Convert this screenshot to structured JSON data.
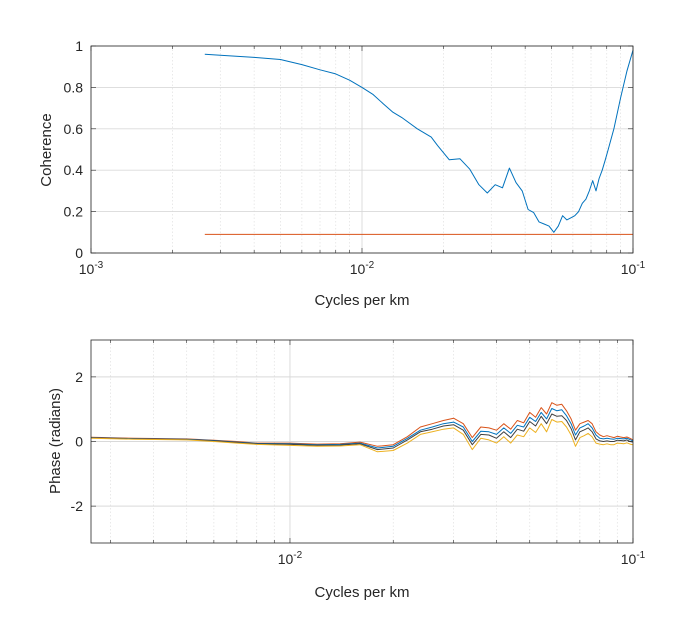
{
  "colors": {
    "background": "#ffffff",
    "axis": "#262626",
    "grid": "#d9d9d9",
    "series_blue": "#0072BD",
    "series_orange": "#D95319",
    "series_yellow": "#EDB120",
    "series_dark": "#404040"
  },
  "chart_data": [
    {
      "type": "line",
      "title": "",
      "xlabel": "Cycles per km",
      "ylabel": "Coherence",
      "xscale": "log",
      "xlim": [
        0.001,
        0.1
      ],
      "ylim": [
        0,
        1
      ],
      "xticks": [
        {
          "value": 0.001,
          "base": "10",
          "exp": "-3"
        },
        {
          "value": 0.01,
          "base": "10",
          "exp": "-2"
        },
        {
          "value": 0.1,
          "base": "10",
          "exp": "-1"
        }
      ],
      "yticks": [
        {
          "value": 0,
          "label": "0"
        },
        {
          "value": 0.2,
          "label": "0.2"
        },
        {
          "value": 0.4,
          "label": "0.4"
        },
        {
          "value": 0.6,
          "label": "0.6"
        },
        {
          "value": 0.8,
          "label": "0.8"
        },
        {
          "value": 1,
          "label": "1"
        }
      ],
      "grid": true,
      "series": [
        {
          "color": "#0072BD",
          "x": [
            0.00263,
            0.003,
            0.004,
            0.005,
            0.006,
            0.007,
            0.008,
            0.009,
            0.01,
            0.011,
            0.012,
            0.013,
            0.014,
            0.016,
            0.018,
            0.019,
            0.021,
            0.023,
            0.025,
            0.027,
            0.029,
            0.031,
            0.033,
            0.035,
            0.037,
            0.039,
            0.041,
            0.043,
            0.045,
            0.047,
            0.049,
            0.051,
            0.053,
            0.055,
            0.057,
            0.059,
            0.061,
            0.063,
            0.065,
            0.067,
            0.069,
            0.071,
            0.073,
            0.075,
            0.077,
            0.079,
            0.081,
            0.085,
            0.09,
            0.095,
            0.1
          ],
          "y": [
            0.96,
            0.955,
            0.945,
            0.935,
            0.91,
            0.885,
            0.865,
            0.835,
            0.8,
            0.765,
            0.72,
            0.68,
            0.655,
            0.6,
            0.56,
            0.52,
            0.45,
            0.455,
            0.405,
            0.33,
            0.29,
            0.33,
            0.315,
            0.41,
            0.34,
            0.3,
            0.21,
            0.195,
            0.15,
            0.14,
            0.13,
            0.1,
            0.13,
            0.18,
            0.16,
            0.17,
            0.18,
            0.2,
            0.24,
            0.26,
            0.3,
            0.35,
            0.3,
            0.36,
            0.4,
            0.45,
            0.5,
            0.6,
            0.75,
            0.88,
            0.98
          ]
        },
        {
          "color": "#D95319",
          "x": [
            0.00263,
            0.1
          ],
          "y": [
            0.09,
            0.09
          ]
        }
      ]
    },
    {
      "type": "line",
      "title": "",
      "xlabel": "Cycles per km",
      "ylabel": "Phase (radians)",
      "xscale": "log",
      "xlim": [
        0.00263,
        0.1
      ],
      "ylim": [
        -3.14159,
        3.14159
      ],
      "xticks": [
        {
          "value": 0.01,
          "base": "10",
          "exp": "-2"
        },
        {
          "value": 0.1,
          "base": "10",
          "exp": "-1"
        }
      ],
      "yticks": [
        {
          "value": -2,
          "label": "-2"
        },
        {
          "value": 0,
          "label": "0"
        },
        {
          "value": 2,
          "label": "2"
        }
      ],
      "grid": true,
      "x": [
        0.00263,
        0.0035,
        0.005,
        0.006,
        0.007,
        0.008,
        0.01,
        0.012,
        0.014,
        0.016,
        0.018,
        0.02,
        0.022,
        0.024,
        0.026,
        0.028,
        0.03,
        0.032,
        0.034,
        0.036,
        0.038,
        0.04,
        0.042,
        0.044,
        0.046,
        0.048,
        0.05,
        0.052,
        0.054,
        0.056,
        0.058,
        0.06,
        0.062,
        0.064,
        0.066,
        0.068,
        0.07,
        0.072,
        0.074,
        0.076,
        0.078,
        0.08,
        0.082,
        0.084,
        0.086,
        0.088,
        0.09,
        0.092,
        0.094,
        0.096,
        0.098,
        0.1
      ],
      "series": [
        {
          "color": "#D95319",
          "y": [
            0.13,
            0.1,
            0.08,
            0.04,
            0.0,
            -0.05,
            -0.05,
            -0.08,
            -0.07,
            -0.02,
            -0.15,
            -0.1,
            0.15,
            0.45,
            0.55,
            0.65,
            0.72,
            0.55,
            0.12,
            0.45,
            0.42,
            0.35,
            0.55,
            0.38,
            0.65,
            0.58,
            0.9,
            0.75,
            1.05,
            0.85,
            1.2,
            1.12,
            1.15,
            0.95,
            0.7,
            0.35,
            0.55,
            0.6,
            0.65,
            0.55,
            0.3,
            0.2,
            0.15,
            0.18,
            0.15,
            0.12,
            0.16,
            0.14,
            0.12,
            0.14,
            0.1,
            0.05
          ]
        },
        {
          "color": "#0072BD",
          "y": [
            0.12,
            0.09,
            0.07,
            0.03,
            -0.02,
            -0.06,
            -0.07,
            -0.1,
            -0.09,
            -0.05,
            -0.2,
            -0.15,
            0.1,
            0.35,
            0.45,
            0.55,
            0.6,
            0.45,
            0.0,
            0.32,
            0.3,
            0.22,
            0.42,
            0.25,
            0.5,
            0.45,
            0.75,
            0.62,
            0.9,
            0.7,
            1.02,
            0.95,
            0.98,
            0.8,
            0.55,
            0.2,
            0.42,
            0.48,
            0.55,
            0.42,
            0.2,
            0.1,
            0.08,
            0.1,
            0.08,
            0.07,
            0.1,
            0.09,
            0.08,
            0.1,
            0.06,
            0.02
          ]
        },
        {
          "color": "#404040",
          "y": [
            0.11,
            0.08,
            0.06,
            0.02,
            -0.03,
            -0.07,
            -0.09,
            -0.12,
            -0.11,
            -0.07,
            -0.25,
            -0.2,
            0.05,
            0.3,
            0.38,
            0.48,
            0.52,
            0.35,
            -0.1,
            0.22,
            0.2,
            0.1,
            0.3,
            0.12,
            0.38,
            0.32,
            0.62,
            0.48,
            0.78,
            0.55,
            0.85,
            0.78,
            0.8,
            0.65,
            0.4,
            0.05,
            0.3,
            0.36,
            0.42,
            0.3,
            0.08,
            0.02,
            0.0,
            0.02,
            0.0,
            0.0,
            0.04,
            0.03,
            0.02,
            0.05,
            0.0,
            -0.02
          ]
        },
        {
          "color": "#EDB120",
          "y": [
            0.1,
            0.07,
            0.05,
            0.0,
            -0.05,
            -0.09,
            -0.12,
            -0.15,
            -0.14,
            -0.1,
            -0.32,
            -0.28,
            -0.05,
            0.22,
            0.3,
            0.38,
            0.42,
            0.22,
            -0.25,
            0.1,
            0.05,
            -0.05,
            0.15,
            -0.05,
            0.2,
            0.15,
            0.42,
            0.28,
            0.55,
            0.3,
            0.68,
            0.6,
            0.62,
            0.45,
            0.2,
            -0.15,
            0.12,
            0.18,
            0.25,
            0.15,
            -0.05,
            -0.08,
            -0.1,
            -0.07,
            -0.1,
            -0.1,
            -0.05,
            -0.06,
            -0.07,
            -0.04,
            -0.08,
            -0.1
          ]
        }
      ]
    }
  ]
}
